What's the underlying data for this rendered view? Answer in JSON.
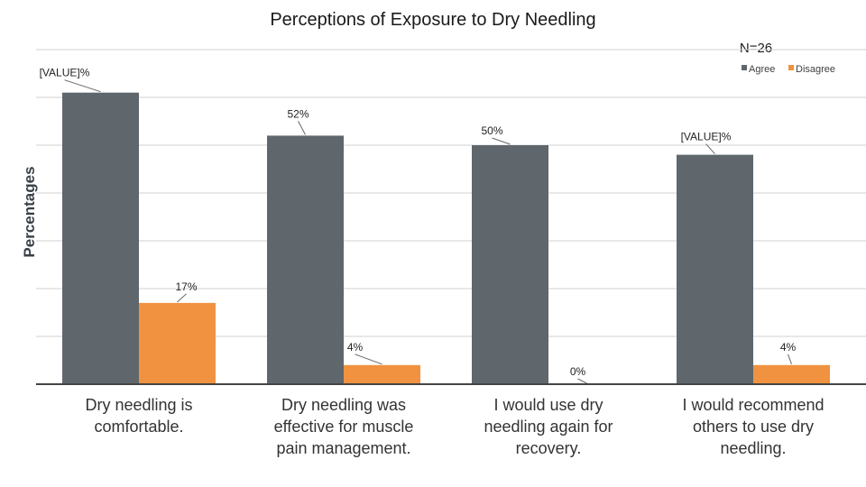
{
  "chart_data": {
    "type": "bar",
    "title": "Perceptions of Exposure to Dry Needling",
    "annotation": "N=26",
    "ylabel": "Percentages",
    "xlabel": "",
    "ylim": [
      0,
      70
    ],
    "grid": true,
    "legend_position": "top-right",
    "categories": [
      "Dry needling is comfortable.",
      "Dry needling was effective for muscle pain management.",
      "I would use dry needling again for recovery.",
      "I would recommend others to use dry needling."
    ],
    "series": [
      {
        "name": "Agree",
        "color": "#5f676d",
        "values": [
          61,
          52,
          50,
          48
        ],
        "labels": [
          "[VALUE]%",
          "52%",
          "50%",
          "[VALUE]%"
        ]
      },
      {
        "name": "Disagree",
        "color": "#f0923f",
        "values": [
          17,
          4,
          0,
          4
        ],
        "labels": [
          "17%",
          "4%",
          "0%",
          "4%"
        ]
      }
    ]
  }
}
